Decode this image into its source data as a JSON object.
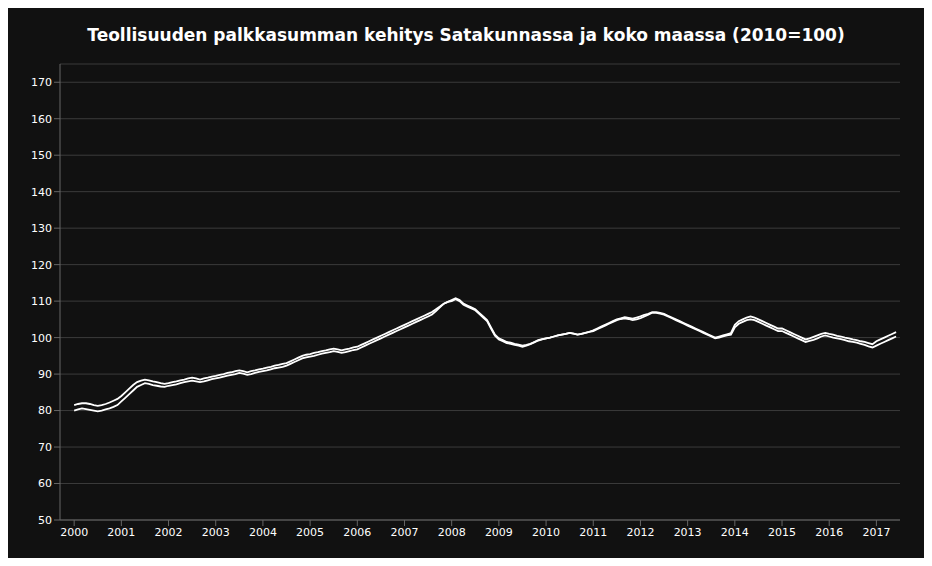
{
  "chart_data": {
    "type": "line",
    "title": "Teollisuuden palkkasumman kehitys Satakunnassa ja koko maassa (2010=100)",
    "x": [
      2000.0,
      2000.083,
      2000.167,
      2000.25,
      2000.333,
      2000.417,
      2000.5,
      2000.583,
      2000.667,
      2000.75,
      2000.833,
      2000.917,
      2001.0,
      2001.083,
      2001.167,
      2001.25,
      2001.333,
      2001.417,
      2001.5,
      2001.583,
      2001.667,
      2001.75,
      2001.833,
      2001.917,
      2002.0,
      2002.083,
      2002.167,
      2002.25,
      2002.333,
      2002.417,
      2002.5,
      2002.583,
      2002.667,
      2002.75,
      2002.833,
      2002.917,
      2003.0,
      2003.083,
      2003.167,
      2003.25,
      2003.333,
      2003.417,
      2003.5,
      2003.583,
      2003.667,
      2003.75,
      2003.833,
      2003.917,
      2004.0,
      2004.083,
      2004.167,
      2004.25,
      2004.333,
      2004.417,
      2004.5,
      2004.583,
      2004.667,
      2004.75,
      2004.833,
      2004.917,
      2005.0,
      2005.083,
      2005.167,
      2005.25,
      2005.333,
      2005.417,
      2005.5,
      2005.583,
      2005.667,
      2005.75,
      2005.833,
      2005.917,
      2006.0,
      2006.083,
      2006.167,
      2006.25,
      2006.333,
      2006.417,
      2006.5,
      2006.583,
      2006.667,
      2006.75,
      2006.833,
      2006.917,
      2007.0,
      2007.083,
      2007.167,
      2007.25,
      2007.333,
      2007.417,
      2007.5,
      2007.583,
      2007.667,
      2007.75,
      2007.833,
      2007.917,
      2008.0,
      2008.083,
      2008.167,
      2008.25,
      2008.333,
      2008.417,
      2008.5,
      2008.583,
      2008.667,
      2008.75,
      2008.833,
      2008.917,
      2009.0,
      2009.083,
      2009.167,
      2009.25,
      2009.333,
      2009.417,
      2009.5,
      2009.583,
      2009.667,
      2009.75,
      2009.833,
      2009.917,
      2010.0,
      2010.083,
      2010.167,
      2010.25,
      2010.333,
      2010.417,
      2010.5,
      2010.583,
      2010.667,
      2010.75,
      2010.833,
      2010.917,
      2011.0,
      2011.083,
      2011.167,
      2011.25,
      2011.333,
      2011.417,
      2011.5,
      2011.583,
      2011.667,
      2011.75,
      2011.833,
      2011.917,
      2012.0,
      2012.083,
      2012.167,
      2012.25,
      2012.333,
      2012.417,
      2012.5,
      2012.583,
      2012.667,
      2012.75,
      2012.833,
      2012.917,
      2013.0,
      2013.083,
      2013.167,
      2013.25,
      2013.333,
      2013.417,
      2013.5,
      2013.583,
      2013.667,
      2013.75,
      2013.833,
      2013.917,
      2014.0,
      2014.083,
      2014.167,
      2014.25,
      2014.333,
      2014.417,
      2014.5,
      2014.583,
      2014.667,
      2014.75,
      2014.833,
      2014.917,
      2015.0,
      2015.083,
      2015.167,
      2015.25,
      2015.333,
      2015.417,
      2015.5,
      2015.583,
      2015.667,
      2015.75,
      2015.833,
      2015.917,
      2016.0,
      2016.083,
      2016.167,
      2016.25,
      2016.333,
      2016.417,
      2016.5,
      2016.583,
      2016.667,
      2016.75,
      2016.833,
      2016.917,
      2017.0,
      2017.083,
      2017.167,
      2017.25,
      2017.333,
      2017.417
    ],
    "series": [
      {
        "color": "#ffffff",
        "values": [
          80.0,
          80.3,
          80.6,
          80.4,
          80.2,
          80.0,
          79.8,
          80.0,
          80.3,
          80.6,
          81.0,
          81.5,
          82.5,
          83.5,
          84.5,
          85.5,
          86.5,
          87.0,
          87.5,
          87.3,
          87.0,
          86.8,
          86.6,
          86.5,
          86.8,
          87.0,
          87.2,
          87.5,
          87.8,
          88.0,
          88.2,
          88.0,
          87.8,
          88.0,
          88.3,
          88.6,
          88.8,
          89.0,
          89.3,
          89.6,
          89.8,
          90.0,
          90.3,
          90.1,
          89.8,
          90.0,
          90.3,
          90.6,
          90.8,
          91.0,
          91.3,
          91.6,
          91.8,
          92.0,
          92.3,
          92.8,
          93.3,
          93.8,
          94.3,
          94.6,
          94.8,
          95.0,
          95.3,
          95.6,
          95.8,
          96.0,
          96.3,
          96.1,
          95.8,
          96.0,
          96.3,
          96.6,
          96.8,
          97.3,
          97.8,
          98.3,
          98.8,
          99.3,
          99.8,
          100.3,
          100.8,
          101.3,
          101.8,
          102.3,
          102.8,
          103.3,
          103.8,
          104.3,
          104.8,
          105.3,
          105.8,
          106.3,
          107.3,
          108.3,
          109.3,
          109.8,
          110.3,
          110.8,
          110.3,
          109.3,
          108.8,
          108.3,
          107.8,
          106.8,
          105.8,
          104.8,
          102.8,
          100.8,
          99.8,
          99.3,
          98.8,
          98.6,
          98.3,
          98.1,
          97.8,
          98.0,
          98.3,
          98.8,
          99.3,
          99.6,
          99.8,
          100.0,
          100.3,
          100.6,
          100.8,
          101.0,
          101.3,
          101.1,
          100.8,
          101.0,
          101.3,
          101.6,
          101.8,
          102.3,
          102.8,
          103.3,
          103.8,
          104.3,
          104.8,
          105.1,
          105.3,
          105.1,
          104.8,
          105.0,
          105.3,
          105.8,
          106.3,
          106.8,
          106.8,
          106.6,
          106.3,
          105.8,
          105.3,
          104.8,
          104.3,
          103.8,
          103.3,
          102.8,
          102.3,
          101.8,
          101.3,
          100.8,
          100.3,
          99.8,
          100.0,
          100.3,
          100.6,
          100.8,
          102.8,
          103.8,
          104.3,
          104.8,
          105.0,
          104.8,
          104.3,
          103.8,
          103.3,
          102.8,
          102.3,
          101.8,
          101.8,
          101.3,
          100.8,
          100.3,
          99.8,
          99.3,
          98.8,
          99.1,
          99.4,
          99.8,
          100.3,
          100.6,
          100.3,
          100.0,
          99.8,
          99.6,
          99.3,
          99.0,
          98.8,
          98.6,
          98.3,
          98.0,
          97.6,
          97.3,
          97.8,
          98.3,
          98.8,
          99.3,
          99.8,
          100.3
        ]
      },
      {
        "color": "#ffffff",
        "values": [
          81.5,
          81.8,
          82.0,
          82.0,
          81.8,
          81.5,
          81.3,
          81.5,
          81.8,
          82.2,
          82.7,
          83.2,
          84.0,
          85.0,
          86.0,
          87.0,
          87.8,
          88.2,
          88.5,
          88.3,
          88.0,
          87.8,
          87.5,
          87.3,
          87.5,
          87.8,
          88.0,
          88.3,
          88.5,
          88.8,
          89.0,
          88.8,
          88.5,
          88.8,
          89.0,
          89.3,
          89.5,
          89.8,
          90.0,
          90.3,
          90.5,
          90.8,
          91.0,
          90.8,
          90.5,
          90.8,
          91.0,
          91.3,
          91.5,
          91.8,
          92.0,
          92.3,
          92.5,
          92.8,
          93.0,
          93.5,
          94.0,
          94.5,
          95.0,
          95.3,
          95.5,
          95.8,
          96.0,
          96.3,
          96.5,
          96.8,
          97.0,
          96.8,
          96.5,
          96.8,
          97.0,
          97.3,
          97.5,
          98.0,
          98.5,
          99.0,
          99.5,
          100.0,
          100.5,
          101.0,
          101.5,
          102.0,
          102.5,
          103.0,
          103.5,
          104.0,
          104.5,
          105.0,
          105.5,
          106.0,
          106.5,
          107.0,
          107.8,
          108.5,
          109.3,
          109.8,
          110.0,
          110.5,
          110.0,
          109.0,
          108.5,
          108.0,
          107.5,
          106.5,
          105.5,
          104.5,
          102.5,
          100.5,
          99.5,
          99.0,
          98.5,
          98.3,
          98.0,
          97.8,
          97.5,
          97.8,
          98.2,
          98.7,
          99.2,
          99.5,
          99.8,
          100.0,
          100.3,
          100.6,
          100.8,
          101.0,
          101.3,
          101.1,
          100.8,
          101.0,
          101.3,
          101.6,
          102.0,
          102.5,
          103.0,
          103.5,
          104.0,
          104.5,
          105.0,
          105.3,
          105.6,
          105.4,
          105.2,
          105.5,
          105.8,
          106.2,
          106.5,
          107.0,
          107.0,
          106.8,
          106.5,
          106.0,
          105.5,
          105.0,
          104.5,
          104.0,
          103.5,
          103.0,
          102.5,
          102.0,
          101.5,
          101.0,
          100.5,
          100.0,
          100.3,
          100.6,
          100.9,
          101.2,
          103.5,
          104.5,
          105.0,
          105.5,
          105.8,
          105.5,
          105.0,
          104.5,
          104.0,
          103.5,
          103.0,
          102.5,
          102.5,
          102.0,
          101.5,
          101.0,
          100.5,
          100.0,
          99.5,
          99.8,
          100.2,
          100.6,
          101.0,
          101.3,
          101.0,
          100.8,
          100.5,
          100.3,
          100.0,
          99.8,
          99.5,
          99.3,
          99.0,
          98.8,
          98.5,
          98.2,
          99.0,
          99.5,
          100.0,
          100.5,
          101.0,
          101.5
        ]
      }
    ],
    "xlim": [
      1999.7,
      2017.5
    ],
    "xticks": [
      2000,
      2001,
      2002,
      2003,
      2004,
      2005,
      2006,
      2007,
      2008,
      2009,
      2010,
      2011,
      2012,
      2013,
      2014,
      2015,
      2016,
      2017
    ],
    "ylim": [
      50,
      175
    ],
    "yticks": [
      50,
      60,
      70,
      80,
      90,
      100,
      110,
      120,
      130,
      140,
      150,
      160,
      170
    ],
    "grid": true
  }
}
